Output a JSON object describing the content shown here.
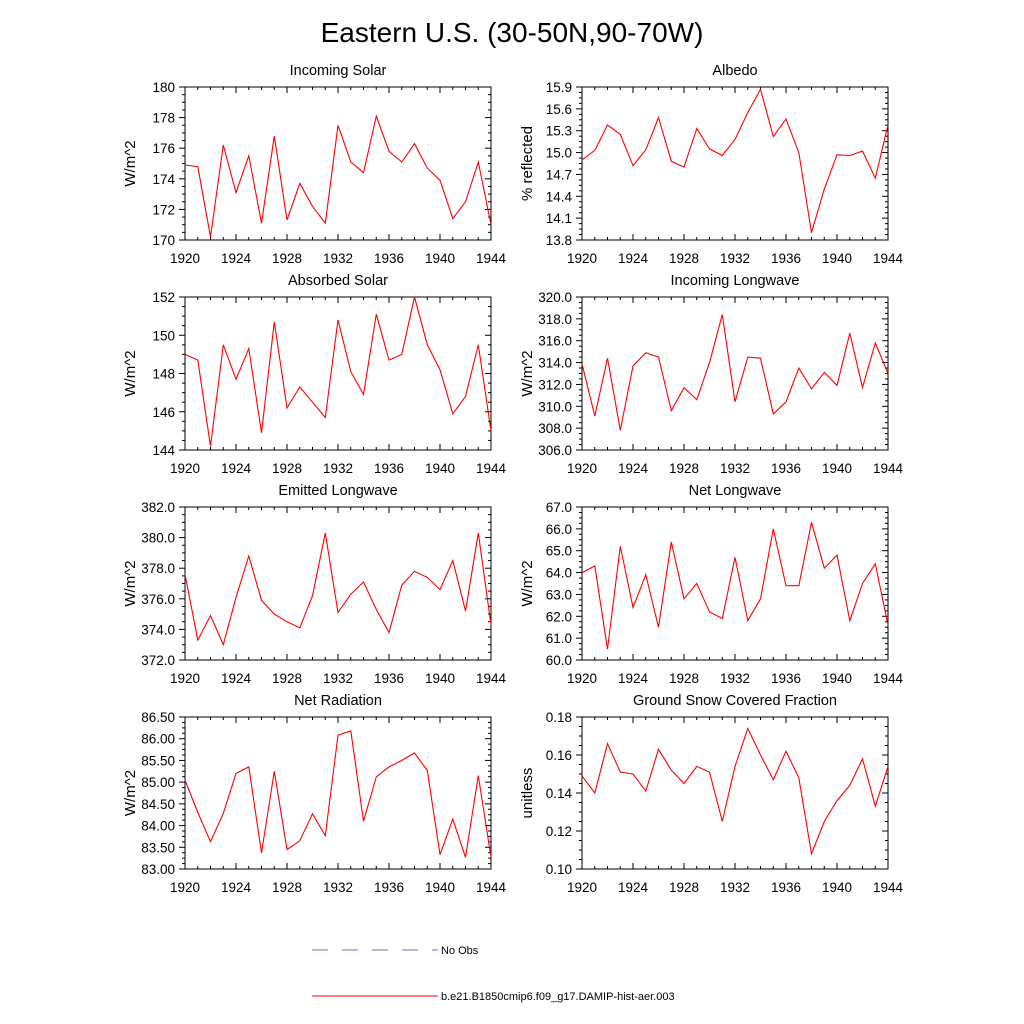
{
  "figure": {
    "title": "Eastern U.S. (30-50N,90-70W)"
  },
  "legend": [
    {
      "label": "No Obs",
      "color": "#6b6bd6",
      "dashed": true
    },
    {
      "label": "b.e21.B1850cmip6.f09_g17.DAMIP-hist-aer.003",
      "color": "#ff0000",
      "dashed": false
    }
  ],
  "chart_data": [
    {
      "type": "line",
      "title": "Incoming Solar",
      "ylabel": "W/m^2",
      "xlim": [
        1920,
        1944
      ],
      "ylim": [
        170,
        180
      ],
      "xticks": [
        1920,
        1924,
        1928,
        1932,
        1936,
        1940,
        1944
      ],
      "xtick_labels": [
        "1920",
        "1924",
        "1928",
        "1932",
        "1936",
        "1940",
        "1944"
      ],
      "yticks": [
        170,
        172,
        174,
        176,
        178,
        180
      ],
      "ytick_labels": [
        "170",
        "172",
        "174",
        "176",
        "178",
        "180"
      ],
      "series": [
        {
          "color": "#ff0000",
          "x": [
            1920,
            1921,
            1922,
            1923,
            1924,
            1925,
            1926,
            1927,
            1928,
            1929,
            1930,
            1931,
            1932,
            1933,
            1934,
            1935,
            1936,
            1937,
            1938,
            1939,
            1940,
            1941,
            1942,
            1943,
            1944
          ],
          "y": [
            174.9,
            174.8,
            170.2,
            176.2,
            173.1,
            175.5,
            171.1,
            176.8,
            171.3,
            173.7,
            172.2,
            171.1,
            177.5,
            175.1,
            174.4,
            178.1,
            175.8,
            175.1,
            176.3,
            174.7,
            173.9,
            171.4,
            172.5,
            175.1,
            171.0
          ]
        }
      ]
    },
    {
      "type": "line",
      "title": "Albedo",
      "ylabel": "% reflected",
      "xlim": [
        1920,
        1944
      ],
      "ylim": [
        13.8,
        15.9
      ],
      "xticks": [
        1920,
        1924,
        1928,
        1932,
        1936,
        1940,
        1944
      ],
      "xtick_labels": [
        "1920",
        "1924",
        "1928",
        "1932",
        "1936",
        "1940",
        "1944"
      ],
      "yticks": [
        13.8,
        14.1,
        14.4,
        14.7,
        15.0,
        15.3,
        15.6,
        15.9
      ],
      "ytick_labels": [
        "13.8",
        "14.1",
        "14.4",
        "14.7",
        "15.0",
        "15.3",
        "15.6",
        "15.9"
      ],
      "series": [
        {
          "color": "#ff0000",
          "x": [
            1920,
            1921,
            1922,
            1923,
            1924,
            1925,
            1926,
            1927,
            1928,
            1929,
            1930,
            1931,
            1932,
            1933,
            1934,
            1935,
            1936,
            1937,
            1938,
            1939,
            1940,
            1941,
            1942,
            1943,
            1944
          ],
          "y": [
            14.9,
            15.03,
            15.38,
            15.25,
            14.82,
            15.04,
            15.48,
            14.88,
            14.8,
            15.33,
            15.05,
            14.96,
            15.18,
            15.55,
            15.87,
            15.22,
            15.46,
            15.0,
            13.9,
            14.5,
            14.97,
            14.96,
            15.02,
            14.65,
            15.38
          ]
        }
      ]
    },
    {
      "type": "line",
      "title": "Absorbed Solar",
      "ylabel": "W/m^2",
      "xlim": [
        1920,
        1944
      ],
      "ylim": [
        144,
        152
      ],
      "xticks": [
        1920,
        1924,
        1928,
        1932,
        1936,
        1940,
        1944
      ],
      "xtick_labels": [
        "1920",
        "1924",
        "1928",
        "1932",
        "1936",
        "1940",
        "1944"
      ],
      "yticks": [
        144,
        146,
        148,
        150,
        152
      ],
      "ytick_labels": [
        "144",
        "146",
        "148",
        "150",
        "152"
      ],
      "series": [
        {
          "color": "#ff0000",
          "x": [
            1920,
            1921,
            1922,
            1923,
            1924,
            1925,
            1926,
            1927,
            1928,
            1929,
            1930,
            1931,
            1932,
            1933,
            1934,
            1935,
            1936,
            1937,
            1938,
            1939,
            1940,
            1941,
            1942,
            1943,
            1944
          ],
          "y": [
            149.0,
            148.7,
            144.2,
            149.5,
            147.7,
            149.3,
            144.9,
            150.7,
            146.2,
            147.3,
            146.5,
            145.7,
            150.8,
            148.1,
            146.9,
            151.1,
            148.7,
            149.0,
            152.0,
            149.5,
            148.2,
            145.9,
            146.8,
            149.5,
            145.0
          ]
        }
      ]
    },
    {
      "type": "line",
      "title": "Incoming Longwave",
      "ylabel": "W/m^2",
      "xlim": [
        1920,
        1944
      ],
      "ylim": [
        306,
        320
      ],
      "xticks": [
        1920,
        1924,
        1928,
        1932,
        1936,
        1940,
        1944
      ],
      "xtick_labels": [
        "1920",
        "1924",
        "1928",
        "1932",
        "1936",
        "1940",
        "1944"
      ],
      "yticks": [
        306,
        308,
        310,
        312,
        314,
        316,
        318,
        320
      ],
      "ytick_labels": [
        "306.0",
        "308.0",
        "310.0",
        "312.0",
        "314.0",
        "316.0",
        "318.0",
        "320.0"
      ],
      "series": [
        {
          "color": "#ff0000",
          "x": [
            1920,
            1921,
            1922,
            1923,
            1924,
            1925,
            1926,
            1927,
            1928,
            1929,
            1930,
            1931,
            1932,
            1933,
            1934,
            1935,
            1936,
            1937,
            1938,
            1939,
            1940,
            1941,
            1942,
            1943,
            1944
          ],
          "y": [
            313.9,
            309.1,
            314.4,
            307.8,
            313.7,
            314.9,
            314.5,
            309.6,
            311.7,
            310.6,
            314.0,
            318.4,
            310.4,
            314.5,
            314.4,
            309.3,
            310.4,
            313.5,
            311.6,
            313.1,
            311.9,
            316.7,
            311.7,
            315.8,
            313.0
          ]
        }
      ]
    },
    {
      "type": "line",
      "title": "Emitted Longwave",
      "ylabel": "W/m^2",
      "xlim": [
        1920,
        1944
      ],
      "ylim": [
        372,
        382
      ],
      "xticks": [
        1920,
        1924,
        1928,
        1932,
        1936,
        1940,
        1944
      ],
      "xtick_labels": [
        "1920",
        "1924",
        "1928",
        "1932",
        "1936",
        "1940",
        "1944"
      ],
      "yticks": [
        372,
        374,
        376,
        378,
        380,
        382
      ],
      "ytick_labels": [
        "372.0",
        "374.0",
        "376.0",
        "378.0",
        "380.0",
        "382.0"
      ],
      "series": [
        {
          "color": "#ff0000",
          "x": [
            1920,
            1921,
            1922,
            1923,
            1924,
            1925,
            1926,
            1927,
            1928,
            1929,
            1930,
            1931,
            1932,
            1933,
            1934,
            1935,
            1936,
            1937,
            1938,
            1939,
            1940,
            1941,
            1942,
            1943,
            1944
          ],
          "y": [
            377.6,
            373.3,
            374.9,
            373.0,
            376.1,
            378.8,
            375.9,
            375.0,
            374.5,
            374.1,
            376.2,
            380.3,
            375.1,
            376.3,
            377.1,
            375.3,
            373.8,
            376.9,
            377.8,
            377.4,
            376.6,
            378.5,
            375.2,
            380.3,
            374.3
          ]
        }
      ]
    },
    {
      "type": "line",
      "title": "Net Longwave",
      "ylabel": "W/m^2",
      "xlim": [
        1920,
        1944
      ],
      "ylim": [
        60,
        67
      ],
      "xticks": [
        1920,
        1924,
        1928,
        1932,
        1936,
        1940,
        1944
      ],
      "xtick_labels": [
        "1920",
        "1924",
        "1928",
        "1932",
        "1936",
        "1940",
        "1944"
      ],
      "yticks": [
        60,
        61,
        62,
        63,
        64,
        65,
        66,
        67
      ],
      "ytick_labels": [
        "60.0",
        "61.0",
        "62.0",
        "63.0",
        "64.0",
        "65.0",
        "66.0",
        "67.0"
      ],
      "series": [
        {
          "color": "#ff0000",
          "x": [
            1920,
            1921,
            1922,
            1923,
            1924,
            1925,
            1926,
            1927,
            1928,
            1929,
            1930,
            1931,
            1932,
            1933,
            1934,
            1935,
            1936,
            1937,
            1938,
            1939,
            1940,
            1941,
            1942,
            1943,
            1944
          ],
          "y": [
            64.0,
            64.3,
            60.5,
            65.2,
            62.4,
            63.9,
            61.5,
            65.4,
            62.8,
            63.5,
            62.2,
            61.9,
            64.7,
            61.8,
            62.8,
            66.0,
            63.4,
            63.4,
            66.3,
            64.2,
            64.8,
            61.8,
            63.5,
            64.4,
            61.6
          ]
        }
      ]
    },
    {
      "type": "line",
      "title": "Net Radiation",
      "ylabel": "W/m^2",
      "xlim": [
        1920,
        1944
      ],
      "ylim": [
        83.0,
        86.5
      ],
      "xticks": [
        1920,
        1924,
        1928,
        1932,
        1936,
        1940,
        1944
      ],
      "xtick_labels": [
        "1920",
        "1924",
        "1928",
        "1932",
        "1936",
        "1940",
        "1944"
      ],
      "yticks": [
        83.0,
        83.5,
        84.0,
        84.5,
        85.0,
        85.5,
        86.0,
        86.5
      ],
      "ytick_labels": [
        "83.00",
        "83.50",
        "84.00",
        "84.50",
        "85.00",
        "85.50",
        "86.00",
        "86.50"
      ],
      "series": [
        {
          "color": "#ff0000",
          "x": [
            1920,
            1921,
            1922,
            1923,
            1924,
            1925,
            1926,
            1927,
            1928,
            1929,
            1930,
            1931,
            1932,
            1933,
            1934,
            1935,
            1936,
            1937,
            1938,
            1939,
            1940,
            1941,
            1942,
            1943,
            1944
          ],
          "y": [
            85.05,
            84.3,
            83.63,
            84.28,
            85.2,
            85.35,
            83.37,
            85.25,
            83.45,
            83.65,
            84.27,
            83.77,
            86.08,
            86.18,
            84.1,
            85.12,
            85.35,
            85.5,
            85.67,
            85.27,
            83.33,
            84.15,
            83.27,
            85.15,
            83.27
          ]
        }
      ]
    },
    {
      "type": "line",
      "title": "Ground Snow Covered Fraction",
      "ylabel": "unitless",
      "xlim": [
        1920,
        1944
      ],
      "ylim": [
        0.1,
        0.18
      ],
      "xticks": [
        1920,
        1924,
        1928,
        1932,
        1936,
        1940,
        1944
      ],
      "xtick_labels": [
        "1920",
        "1924",
        "1928",
        "1932",
        "1936",
        "1940",
        "1944"
      ],
      "yticks": [
        0.1,
        0.12,
        0.14,
        0.16,
        0.18
      ],
      "ytick_labels": [
        "0.10",
        "0.12",
        "0.14",
        "0.16",
        "0.18"
      ],
      "series": [
        {
          "color": "#ff0000",
          "x": [
            1920,
            1921,
            1922,
            1923,
            1924,
            1925,
            1926,
            1927,
            1928,
            1929,
            1930,
            1931,
            1932,
            1933,
            1934,
            1935,
            1936,
            1937,
            1938,
            1939,
            1940,
            1941,
            1942,
            1943,
            1944
          ],
          "y": [
            0.149,
            0.14,
            0.166,
            0.151,
            0.15,
            0.141,
            0.163,
            0.152,
            0.145,
            0.154,
            0.151,
            0.125,
            0.154,
            0.174,
            0.16,
            0.147,
            0.162,
            0.148,
            0.108,
            0.125,
            0.136,
            0.144,
            0.158,
            0.133,
            0.154
          ]
        }
      ]
    }
  ]
}
